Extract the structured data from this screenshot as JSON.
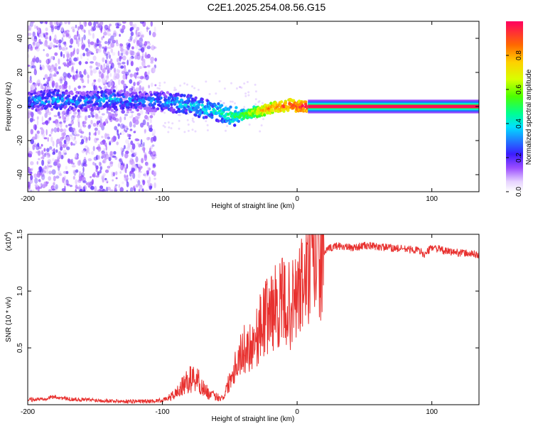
{
  "title": "C2E1.2025.254.08.56.G15",
  "chart_data": [
    {
      "type": "heatmap",
      "name": "spectrogram",
      "xlabel": "Height of straight line (km)",
      "ylabel": "Frequency (Hz)",
      "xlim": [
        -200,
        135
      ],
      "ylim": [
        -50,
        50
      ],
      "x_ticks": [
        -200,
        -100,
        0,
        100
      ],
      "x_tick_labels": [
        "-200",
        "-100",
        "0",
        "100"
      ],
      "y_ticks": [
        -40,
        -20,
        0,
        20,
        40
      ],
      "y_tick_labels": [
        "-40",
        "-20",
        "0",
        "20",
        "40"
      ],
      "colorbar": {
        "label": "Normalized spectral amplitude",
        "range": [
          0,
          1
        ],
        "ticks": [
          0.0,
          0.2,
          0.4,
          0.6,
          0.8
        ],
        "tick_labels": [
          "0.0",
          "0.2",
          "0.4",
          "0.6",
          "0.8"
        ]
      },
      "ridge": {
        "x": [
          -200,
          -180,
          -160,
          -140,
          -120,
          -110,
          -100,
          -90,
          -80,
          -70,
          -60,
          -50,
          -45,
          -40,
          -35,
          -30,
          -25,
          -20,
          -15,
          -10,
          -5,
          0,
          5,
          10,
          20,
          40,
          60,
          80,
          100,
          120,
          135
        ],
        "y": [
          3,
          4,
          3,
          4,
          3,
          3,
          3,
          2,
          1,
          -1,
          -3,
          -5,
          -6,
          -5,
          -4,
          -3,
          -2,
          -1,
          0,
          0,
          1,
          0,
          0,
          0,
          0,
          0,
          0,
          0,
          0,
          0,
          0
        ],
        "amplitude": [
          0.3,
          0.35,
          0.3,
          0.35,
          0.3,
          0.3,
          0.32,
          0.35,
          0.38,
          0.4,
          0.42,
          0.45,
          0.5,
          0.55,
          0.62,
          0.7,
          0.78,
          0.82,
          0.85,
          0.88,
          0.9,
          0.92,
          0.95,
          0.97,
          0.98,
          0.98,
          0.98,
          0.98,
          0.98,
          0.98,
          0.98
        ]
      }
    },
    {
      "type": "line",
      "name": "snr",
      "xlabel": "Height of straight line (km)",
      "ylabel": "SNR (10 * v/v)",
      "y_multiplier_label": "(x10",
      "y_multiplier_exp": "4",
      "y_multiplier_close": ")",
      "xlim": [
        -200,
        135
      ],
      "ylim": [
        0,
        15000
      ],
      "x_ticks": [
        -200,
        -100,
        0,
        100
      ],
      "x_tick_labels": [
        "-200",
        "-100",
        "0",
        "100"
      ],
      "y_ticks": [
        5000,
        10000,
        15000
      ],
      "y_tick_labels": [
        "0.5",
        "1.0",
        "1.5"
      ],
      "color": "#e8312f",
      "series": [
        {
          "name": "SNR",
          "x": [
            -200,
            -190,
            -180,
            -170,
            -160,
            -150,
            -140,
            -130,
            -120,
            -110,
            -100,
            -95,
            -90,
            -85,
            -80,
            -75,
            -70,
            -65,
            -60,
            -55,
            -50,
            -45,
            -40,
            -35,
            -30,
            -25,
            -20,
            -15,
            -10,
            -5,
            0,
            5,
            10,
            15,
            20,
            25,
            30,
            40,
            50,
            60,
            70,
            80,
            90,
            95,
            100,
            110,
            120,
            135
          ],
          "y": [
            400,
            500,
            700,
            500,
            450,
            400,
            350,
            300,
            300,
            300,
            400,
            600,
            1000,
            1600,
            2200,
            2400,
            1500,
            900,
            700,
            600,
            2200,
            3800,
            4800,
            5200,
            6000,
            7500,
            8200,
            8700,
            9000,
            8600,
            9500,
            10800,
            12000,
            12800,
            13400,
            13800,
            14000,
            13800,
            14000,
            13900,
            13800,
            13700,
            13600,
            13200,
            13900,
            13500,
            13400,
            13200
          ]
        }
      ]
    }
  ]
}
